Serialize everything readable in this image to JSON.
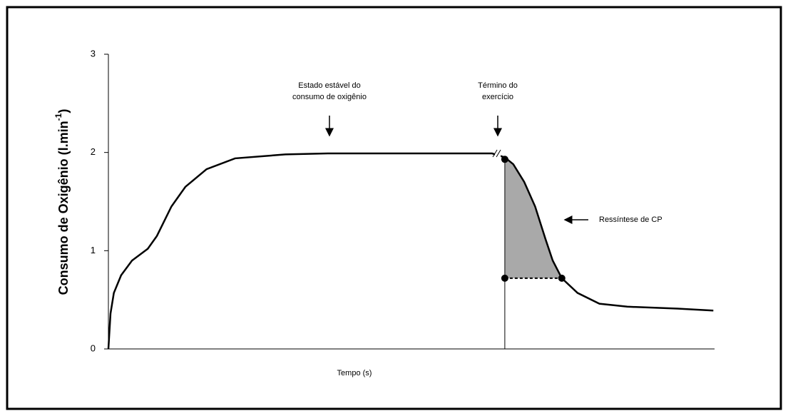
{
  "chart_data": {
    "type": "line",
    "ylabel": {
      "text": "Consumo de Oxigênio (l.min",
      "sup": "-1",
      "end": ")"
    },
    "xlabel": "Tempo (s)",
    "x": [
      0,
      0.35,
      0.9,
      2.1,
      3.9,
      6.5,
      8,
      10.4,
      12.7,
      16.2,
      20.9,
      29.2,
      36.2,
      63.3,
      65.4,
      66.8,
      68.6,
      70.4,
      72.1,
      73.3,
      74.8,
      77.4,
      81,
      85.6,
      93.9,
      99.8
    ],
    "values": [
      0,
      0.36,
      0.57,
      0.75,
      0.9,
      1.02,
      1.15,
      1.45,
      1.65,
      1.83,
      1.94,
      1.98,
      1.99,
      1.99,
      1.95,
      1.88,
      1.7,
      1.45,
      1.12,
      0.9,
      0.72,
      0.57,
      0.46,
      0.43,
      0.41,
      0.39
    ],
    "color": "#000000",
    "xlim": [
      0,
      100
    ],
    "ylim": [
      0,
      3
    ],
    "yticks": [
      0,
      1,
      2,
      3
    ],
    "shaded_region": {
      "x": [
        65.4,
        74.8
      ],
      "baseline": 0.72,
      "color": "#a9a9a9"
    },
    "markers": {
      "x": [
        65.4,
        65.4,
        74.8
      ],
      "y": [
        1.93,
        0.72,
        0.72
      ]
    },
    "annotations": [
      {
        "lines": [
          "Estado estável do",
          "consumo de oxigênio"
        ]
      },
      {
        "lines": [
          "Término do",
          "exercício"
        ]
      },
      {
        "lines": [
          "Ressíntese de CP"
        ]
      }
    ]
  }
}
